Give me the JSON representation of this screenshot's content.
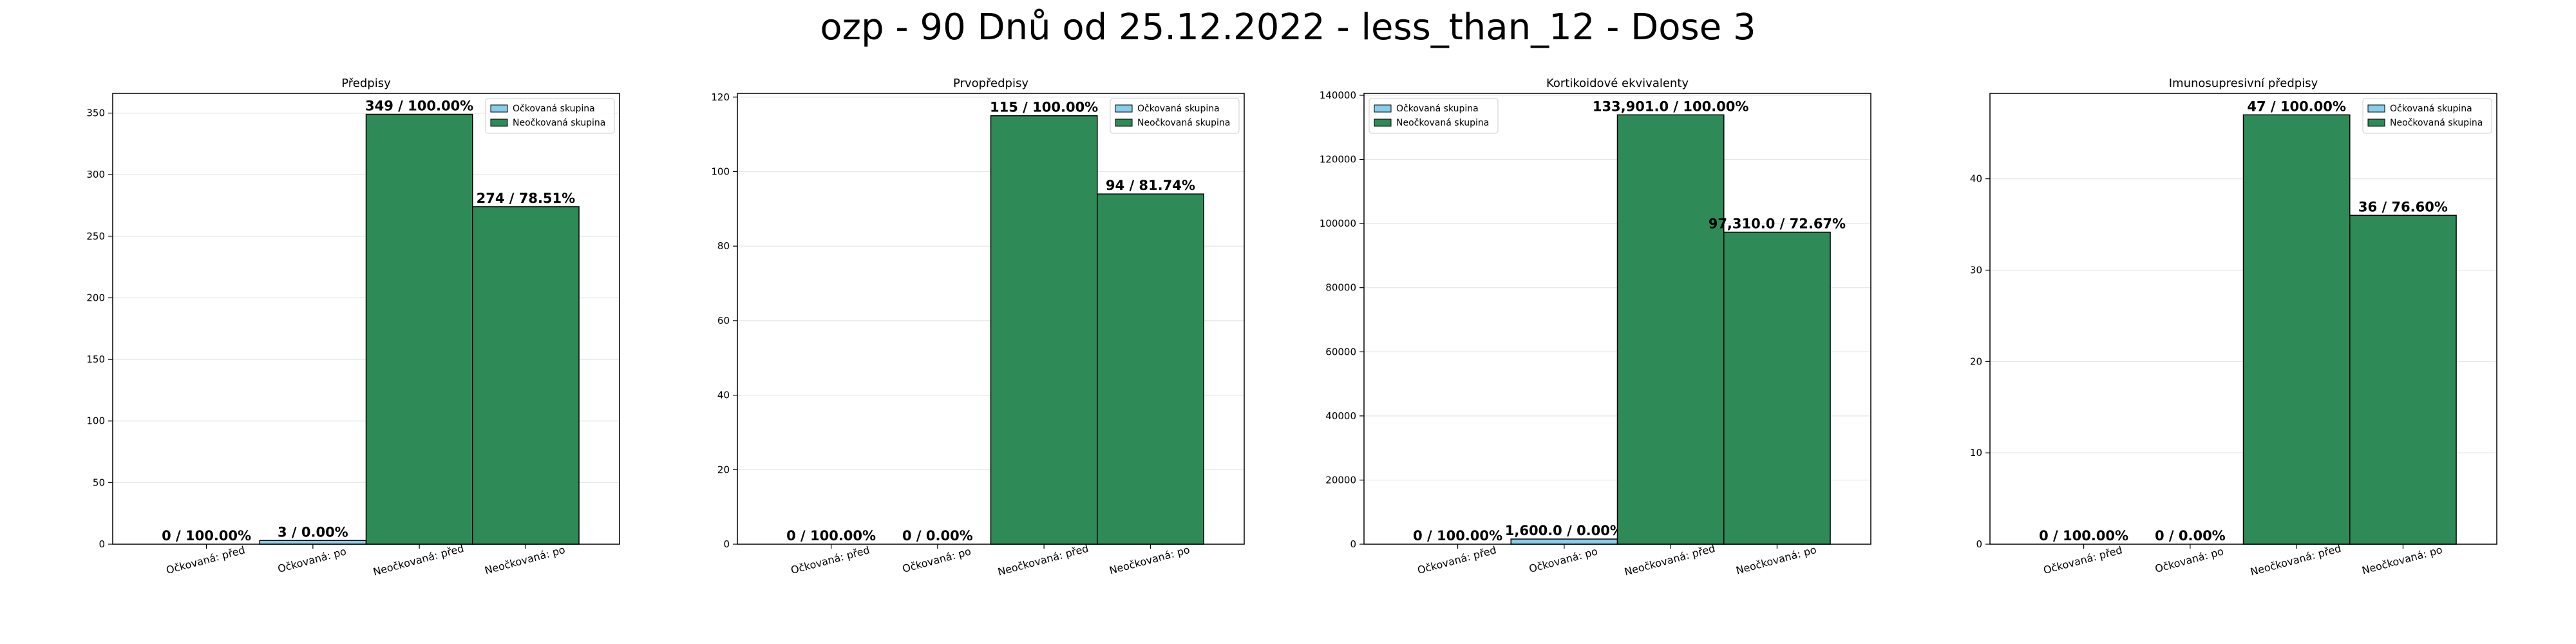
{
  "figure": {
    "title": "ozp - 90 Dnů od 25.12.2022 - less_than_12 - Dose 3",
    "colors": {
      "vaccinated": "#87ceeb",
      "unvaccinated": "#2e8b57",
      "edge": "#000000"
    }
  },
  "chart_data": [
    {
      "type": "bar",
      "title": "Předpisy",
      "categories": [
        "Očkovaná: před",
        "Očkovaná: po",
        "Neočkovaná: před",
        "Neočkovaná: po"
      ],
      "values": [
        0,
        3,
        349,
        274
      ],
      "labels": [
        "0 / 100.00%",
        "3 / 0.00%",
        "349 / 100.00%",
        "274 / 78.51%"
      ],
      "groups": [
        "vaccinated",
        "vaccinated",
        "unvaccinated",
        "unvaccinated"
      ],
      "ylim": [
        0,
        366
      ],
      "yticks": [
        0,
        50,
        100,
        150,
        200,
        250,
        300,
        350
      ],
      "legend": {
        "position": "top-right",
        "entries": [
          "Očkovaná skupina",
          "Neočkovaná skupina"
        ]
      },
      "grid": true
    },
    {
      "type": "bar",
      "title": "Prvopředpisy",
      "categories": [
        "Očkovaná: před",
        "Očkovaná: po",
        "Neočkovaná: před",
        "Neočkovaná: po"
      ],
      "values": [
        0,
        0,
        115,
        94
      ],
      "labels": [
        "0 / 100.00%",
        "0 / 0.00%",
        "115 / 100.00%",
        "94 / 81.74%"
      ],
      "groups": [
        "vaccinated",
        "vaccinated",
        "unvaccinated",
        "unvaccinated"
      ],
      "ylim": [
        0,
        121
      ],
      "yticks": [
        0,
        20,
        40,
        60,
        80,
        100,
        120
      ],
      "legend": {
        "position": "top-right",
        "entries": [
          "Očkovaná skupina",
          "Neočkovaná skupina"
        ]
      },
      "grid": true
    },
    {
      "type": "bar",
      "title": "Kortikoidové ekvivalenty",
      "categories": [
        "Očkovaná: před",
        "Očkovaná: po",
        "Neočkovaná: před",
        "Neočkovaná: po"
      ],
      "values": [
        0,
        1600,
        133901,
        97310
      ],
      "labels": [
        "0 / 100.00%",
        "1,600.0 / 0.00%",
        "133,901.0 / 100.00%",
        "97,310.0 / 72.67%"
      ],
      "groups": [
        "vaccinated",
        "vaccinated",
        "unvaccinated",
        "unvaccinated"
      ],
      "ylim": [
        0,
        140596
      ],
      "yticks": [
        0,
        20000,
        40000,
        60000,
        80000,
        100000,
        120000,
        140000
      ],
      "legend": {
        "position": "top-left",
        "entries": [
          "Očkovaná skupina",
          "Neočkovaná skupina"
        ]
      },
      "grid": true
    },
    {
      "type": "bar",
      "title": "Imunosupresivní předpisy",
      "categories": [
        "Očkovaná: před",
        "Očkovaná: po",
        "Neočkovaná: před",
        "Neočkovaná: po"
      ],
      "values": [
        0,
        0,
        47,
        36
      ],
      "labels": [
        "0 / 100.00%",
        "0 / 0.00%",
        "47 / 100.00%",
        "36 / 76.60%"
      ],
      "groups": [
        "vaccinated",
        "vaccinated",
        "unvaccinated",
        "unvaccinated"
      ],
      "ylim": [
        0,
        49.35
      ],
      "yticks": [
        0,
        10,
        20,
        30,
        40
      ],
      "legend": {
        "position": "top-right",
        "entries": [
          "Očkovaná skupina",
          "Neočkovaná skupina"
        ]
      },
      "grid": true
    }
  ]
}
